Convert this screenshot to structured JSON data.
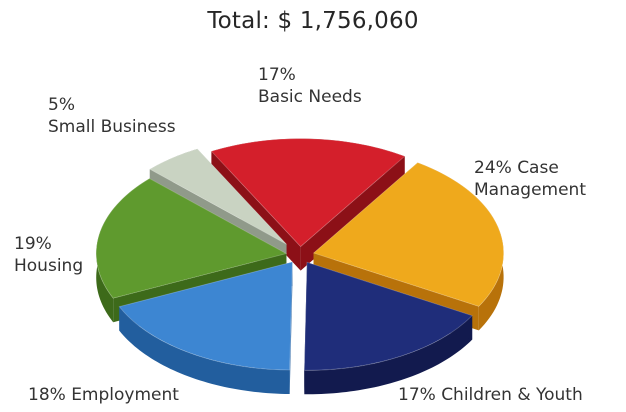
{
  "chart_data": {
    "type": "pie",
    "title": "Total: $ 1,756,060",
    "total": 1756060,
    "slices": [
      {
        "label": "Basic Needs",
        "percent": 17,
        "label_lines": [
          "17%",
          "Basic Needs"
        ],
        "color": "#d41f2b",
        "side_color": "#8c1017"
      },
      {
        "label": "Case Management",
        "percent": 24,
        "label_lines": [
          "24% Case",
          "Management"
        ],
        "color": "#efa91c",
        "side_color": "#b8720a"
      },
      {
        "label": "Children & Youth",
        "percent": 17,
        "label_lines": [
          "17% Children & Youth"
        ],
        "color": "#1f2d7a",
        "side_color": "#121a4e"
      },
      {
        "label": "Employment",
        "percent": 18,
        "label_lines": [
          "18% Employment"
        ],
        "color": "#3d86d2",
        "side_color": "#225e9e"
      },
      {
        "label": "Housing",
        "percent": 19,
        "label_lines": [
          "19%",
          "Housing"
        ],
        "color": "#5f9a2e",
        "side_color": "#3d6a1a"
      },
      {
        "label": "Small Business",
        "percent": 5,
        "label_lines": [
          "5%",
          "Small Business"
        ],
        "color": "#c9d3c2",
        "side_color": "#909a8a"
      }
    ],
    "exploded": true,
    "three_d": true
  }
}
